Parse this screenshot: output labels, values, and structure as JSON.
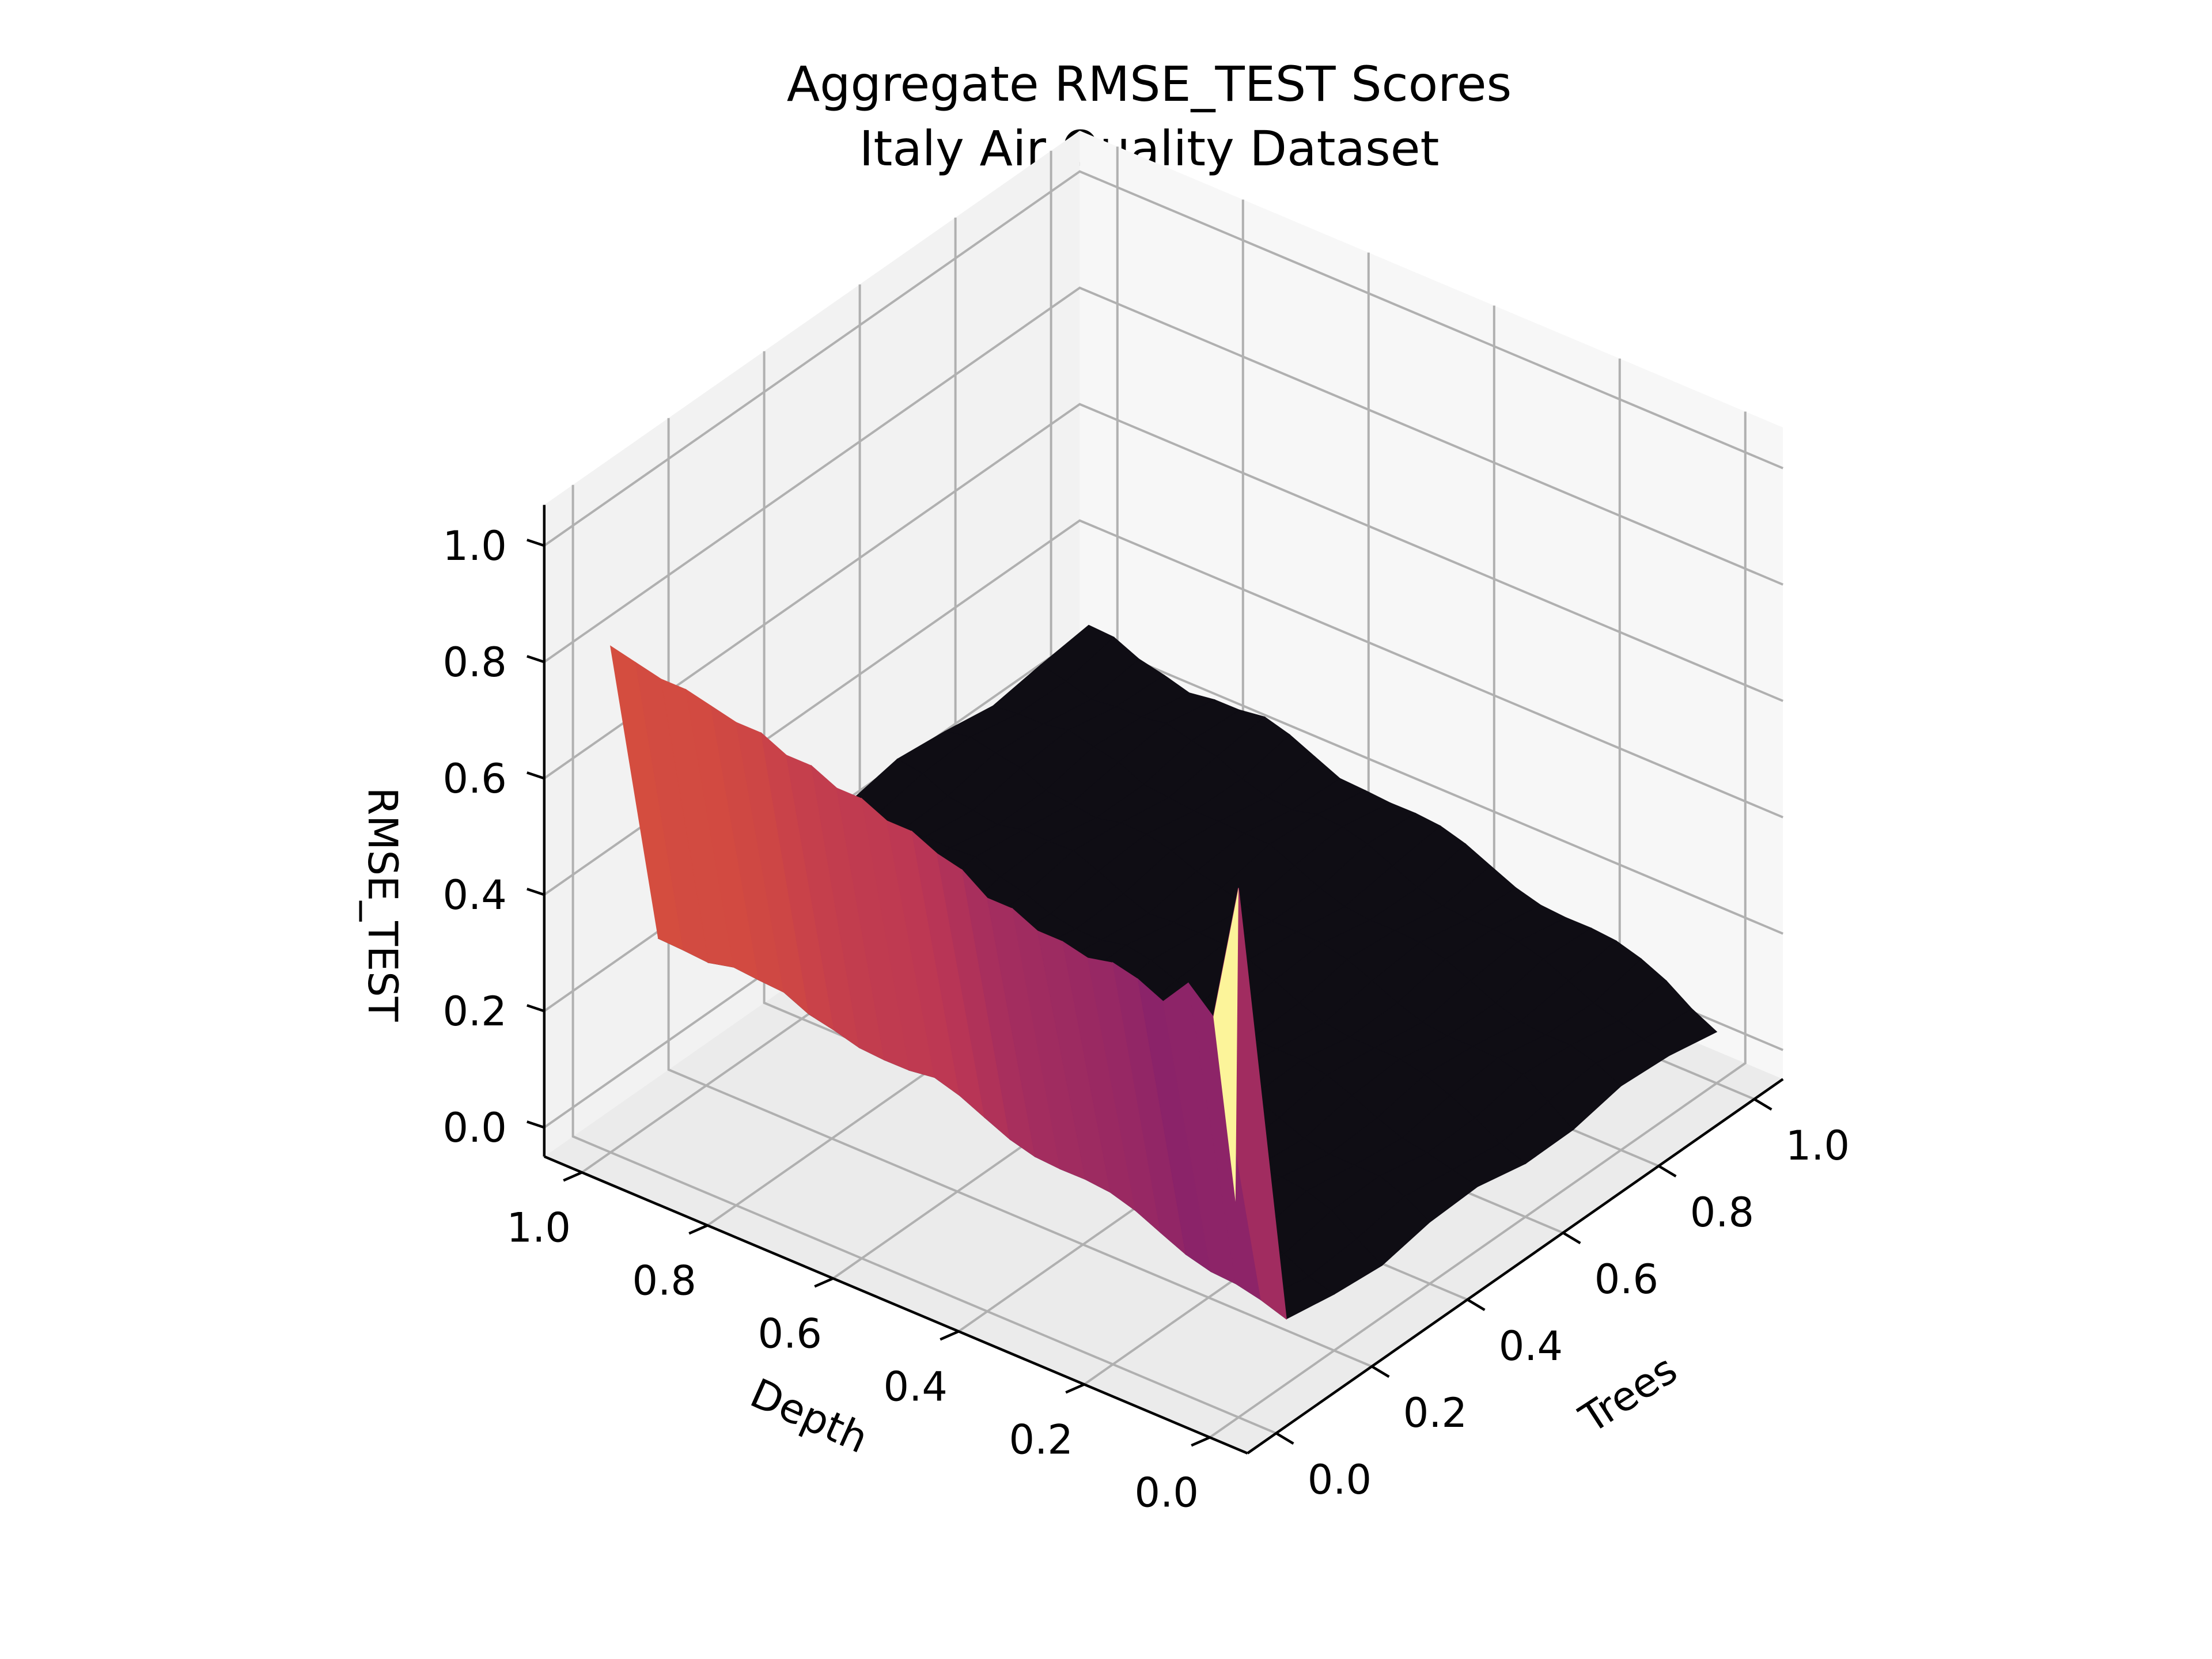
{
  "chart_data": {
    "type": "surface3d",
    "title": "Aggregate RMSE_TEST Scores",
    "subtitle": "Italy Air Quality Dataset",
    "xlabel": "Trees",
    "ylabel": "Depth",
    "zlabel": "RMSE_TEST",
    "xlim": [
      0,
      1
    ],
    "ylim": [
      0,
      1
    ],
    "zlim": [
      0,
      1
    ],
    "x_ticks": [
      "0.0",
      "0.2",
      "0.4",
      "0.6",
      "0.8",
      "1.0"
    ],
    "y_ticks": [
      "0.0",
      "0.2",
      "0.4",
      "0.6",
      "0.8",
      "1.0"
    ],
    "z_ticks": [
      "0.0",
      "0.2",
      "0.4",
      "0.6",
      "0.8",
      "1.0"
    ],
    "colormap": "inferno",
    "grid": true,
    "surface": {
      "trees": [
        0.0,
        0.1,
        0.2,
        0.3,
        0.4,
        0.5,
        0.6,
        0.7,
        0.8,
        0.9,
        1.0
      ],
      "depth": [
        0.0,
        0.04,
        0.08,
        0.12,
        0.16,
        0.2,
        0.24,
        0.28,
        0.32,
        0.36,
        0.4,
        0.44,
        0.48,
        0.52,
        0.56,
        0.6,
        0.64,
        0.68,
        0.72,
        0.76,
        0.8,
        0.84,
        0.88,
        0.92,
        0.96,
        1.0
      ],
      "rmse_at_zero_trees": [
        0.86,
        0.62,
        0.66,
        0.61,
        0.63,
        0.64,
        0.63,
        0.64,
        0.64,
        0.66,
        0.66,
        0.69,
        0.7,
        0.72,
        0.72,
        0.74,
        0.74,
        0.76,
        0.76,
        0.78,
        0.78,
        0.79,
        0.8,
        0.8,
        0.81,
        0.82
      ],
      "rmse_at_positive_trees": [
        0.05,
        0.07,
        0.09,
        0.1,
        0.11,
        0.12,
        0.13,
        0.14,
        0.15,
        0.16,
        0.17,
        0.18,
        0.19,
        0.2,
        0.21,
        0.21,
        0.22,
        0.23,
        0.24,
        0.24,
        0.25,
        0.25,
        0.26,
        0.26,
        0.27,
        0.27
      ]
    }
  }
}
